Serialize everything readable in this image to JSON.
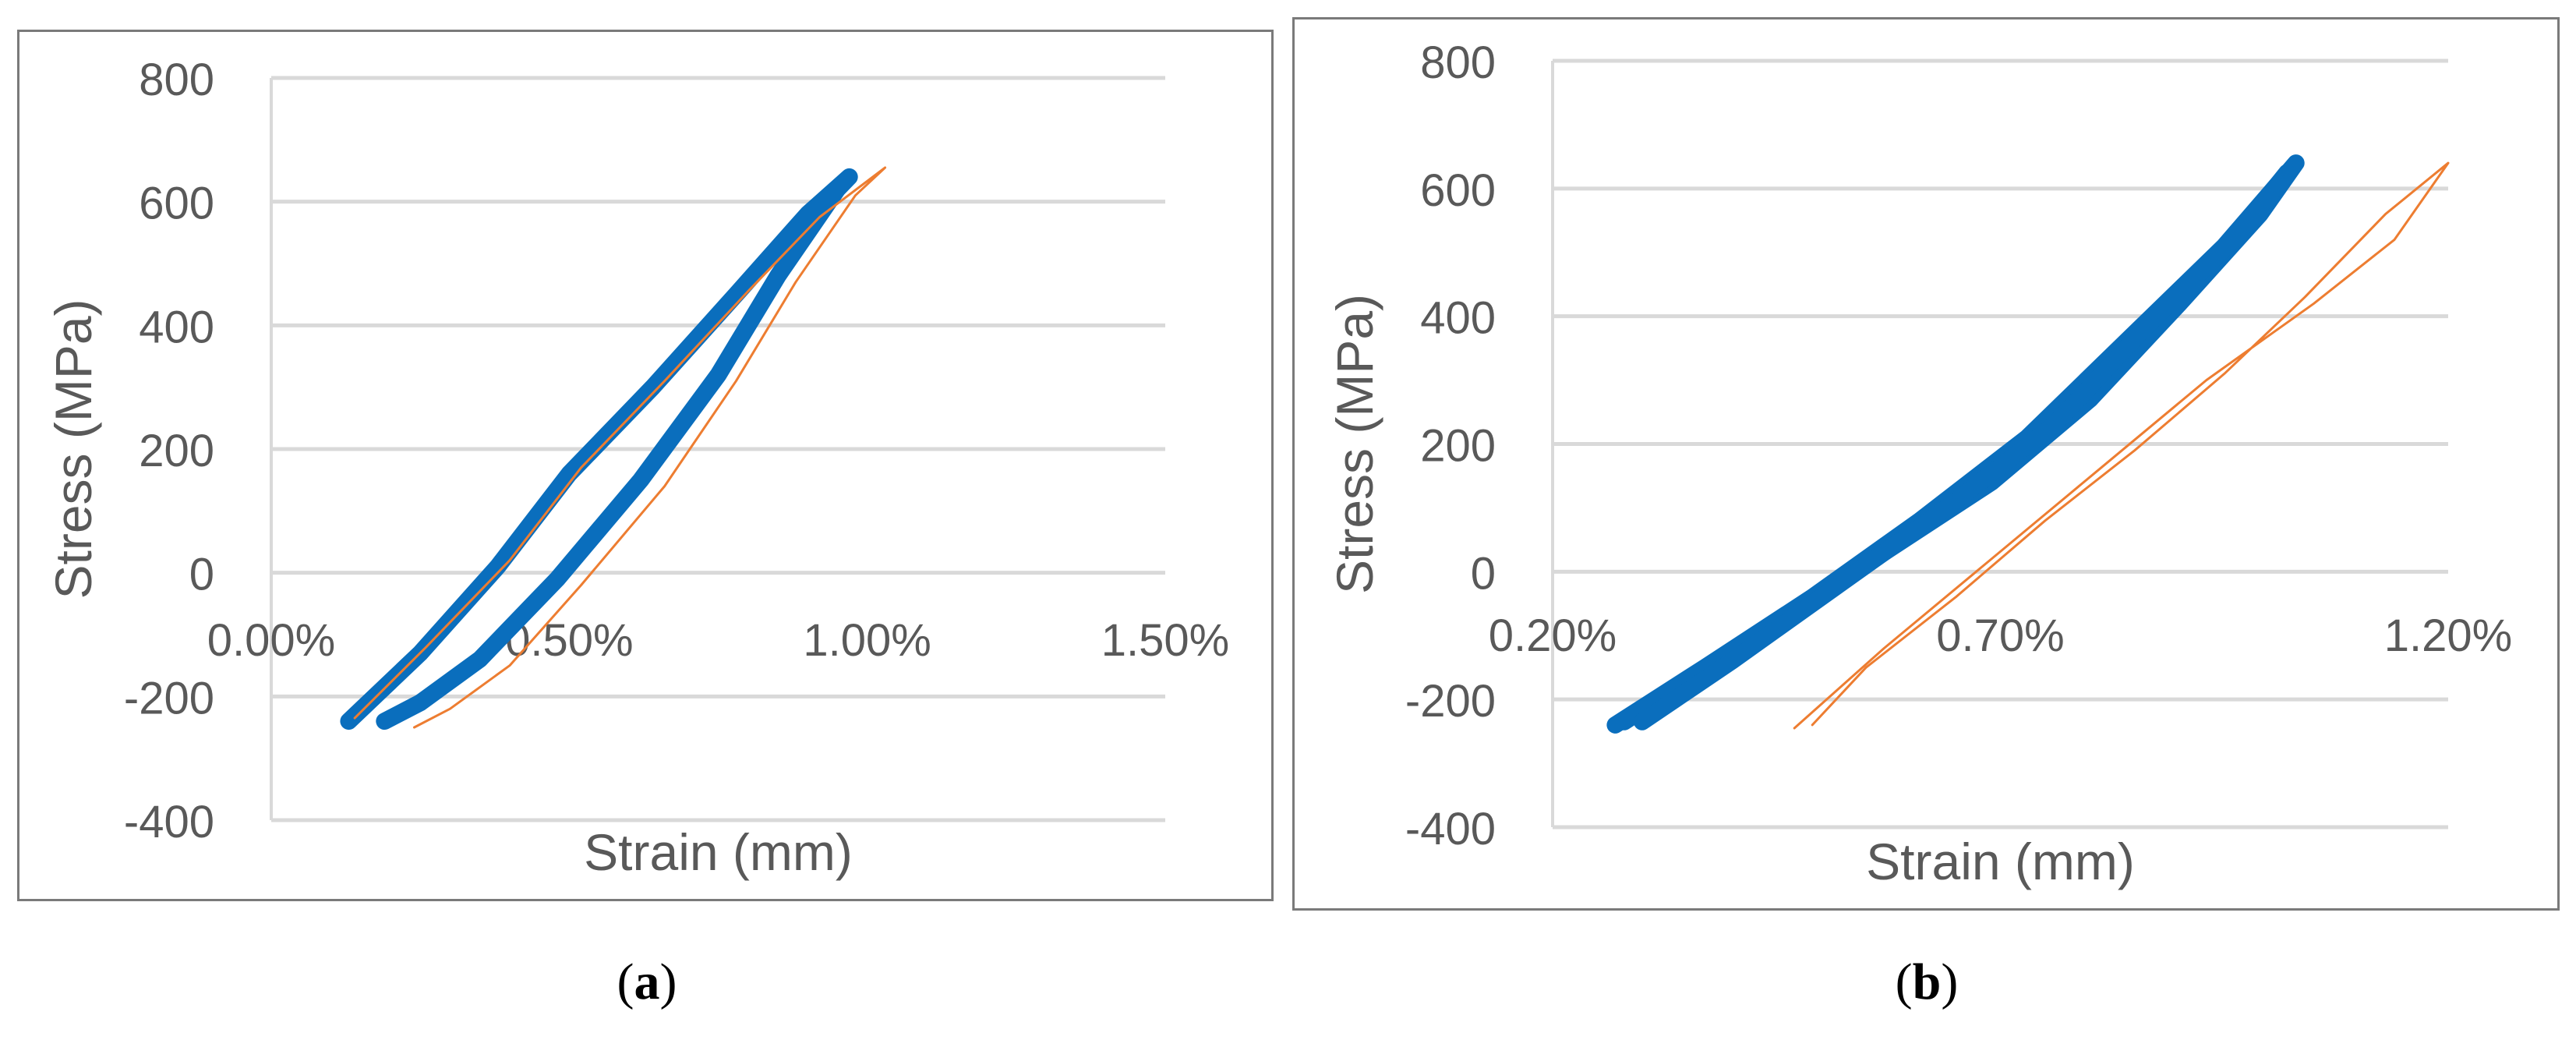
{
  "captions": {
    "a_label": "a",
    "b_label": "b",
    "open_paren": "(",
    "close_paren": ")"
  },
  "colors": {
    "loop_primary": "#0a6ebd",
    "loop_secondary": "#ed7d31",
    "grid": "#d9d9d9",
    "text": "#595959",
    "border": "#7a7a7a"
  },
  "chart_data": [
    {
      "id": "a",
      "type": "line",
      "xlabel": "Strain (mm)",
      "ylabel": "Stress (MPa)",
      "xlim": [
        0,
        0.015
      ],
      "ylim": [
        -400,
        800
      ],
      "x_ticks": [
        0.0,
        0.005,
        0.01,
        0.015
      ],
      "x_tick_labels": [
        "0.00%",
        "0.50%",
        "1.00%",
        "1.50%"
      ],
      "y_ticks": [
        -400,
        -200,
        0,
        200,
        400,
        600,
        800
      ],
      "y_tick_labels": [
        "-400",
        "-200",
        "0",
        "200",
        "400",
        "600",
        "800"
      ],
      "grid": true,
      "series": [
        {
          "color": "#0a6ebd",
          "style": "thick",
          "x": [
            0.0013,
            0.0025,
            0.0038,
            0.005,
            0.0064,
            0.0078,
            0.009,
            0.0097,
            0.0095,
            0.0085,
            0.0075,
            0.0062,
            0.0048,
            0.0035,
            0.0025,
            0.0019
          ],
          "y": [
            -240,
            -130,
            10,
            160,
            300,
            450,
            580,
            640,
            620,
            480,
            320,
            150,
            -10,
            -140,
            -210,
            -240
          ]
        },
        {
          "color": "#ed7d31",
          "style": "thin",
          "x": [
            0.0014,
            0.0026,
            0.004,
            0.0052,
            0.0066,
            0.008,
            0.0092,
            0.0103,
            0.0098,
            0.0088,
            0.0078,
            0.0066,
            0.0052,
            0.004,
            0.003,
            0.0024
          ],
          "y": [
            -235,
            -120,
            20,
            170,
            310,
            455,
            575,
            655,
            610,
            470,
            310,
            140,
            -20,
            -150,
            -220,
            -250
          ]
        }
      ]
    },
    {
      "id": "b",
      "type": "line",
      "xlabel": "Strain (mm)",
      "ylabel": "Stress (MPa)",
      "xlim": [
        0.002,
        0.012
      ],
      "ylim": [
        -400,
        800
      ],
      "x_ticks": [
        0.002,
        0.007,
        0.012
      ],
      "x_tick_labels": [
        "0.20%",
        "0.70%",
        "1.20%"
      ],
      "y_ticks": [
        -400,
        -200,
        0,
        200,
        400,
        600,
        800
      ],
      "y_tick_labels": [
        "-400",
        "-200",
        "0",
        "200",
        "400",
        "600",
        "800"
      ],
      "grid": true,
      "series": [
        {
          "color": "#0a6ebd",
          "style": "thick",
          "x": [
            0.0027,
            0.0037,
            0.0049,
            0.0061,
            0.0073,
            0.0084,
            0.0095,
            0.0103,
            0.0099,
            0.009,
            0.008,
            0.0069,
            0.0057,
            0.0045,
            0.0034,
            0.0028
          ],
          "y": [
            -240,
            -150,
            -40,
            80,
            210,
            360,
            510,
            640,
            560,
            420,
            270,
            140,
            30,
            -80,
            -180,
            -235
          ]
        },
        {
          "color": "#0a6ebd",
          "style": "thick",
          "x": [
            0.003,
            0.004,
            0.0052,
            0.0064,
            0.0076,
            0.0086,
            0.0096,
            0.0102
          ],
          "y": [
            -235,
            -140,
            -20,
            100,
            230,
            380,
            520,
            625
          ]
        },
        {
          "color": "#ed7d31",
          "style": "thin",
          "x": [
            0.0047,
            0.0057,
            0.0069,
            0.0081,
            0.0093,
            0.0105,
            0.0114,
            0.012,
            0.0113,
            0.0104,
            0.0095,
            0.0085,
            0.0075,
            0.0065,
            0.0055,
            0.0049
          ],
          "y": [
            -245,
            -120,
            20,
            160,
            300,
            420,
            520,
            640,
            560,
            430,
            310,
            190,
            80,
            -40,
            -150,
            -240
          ]
        }
      ]
    }
  ]
}
